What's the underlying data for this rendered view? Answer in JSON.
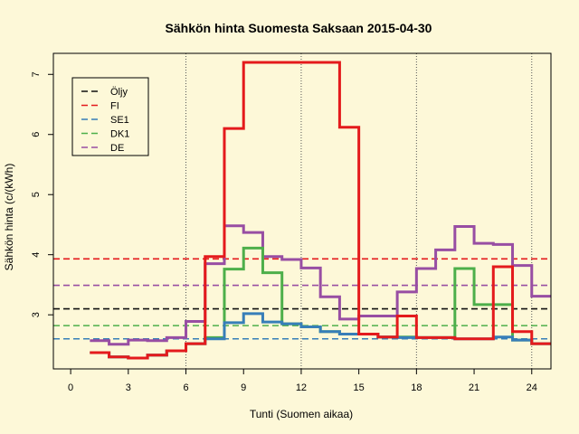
{
  "chart_data": {
    "type": "line",
    "title": "Sähkön hinta Suomesta Saksaan 2015-04-30",
    "xlabel": "Tunti (Suomen aikaa)",
    "ylabel": "Sähkön hinta (c/(kWh)",
    "xlim": [
      -0.9,
      25
    ],
    "ylim": [
      2.1,
      7.35
    ],
    "xticks": [
      0,
      3,
      6,
      9,
      12,
      15,
      18,
      21,
      24
    ],
    "yticks": [
      3,
      4,
      5,
      6,
      7
    ],
    "vlines": [
      6,
      12,
      18,
      24
    ],
    "step": true,
    "legend_position": "top-left",
    "series": [
      {
        "name": "Öljy",
        "color": "#111111",
        "dash": true,
        "values": [
          3.1
        ]
      },
      {
        "name": "FI",
        "color": "#e41a1c",
        "dash": false,
        "hline": 3.93,
        "x": [
          1,
          2,
          3,
          4,
          5,
          6,
          7,
          8,
          9,
          10,
          11,
          12,
          13,
          14,
          15,
          16,
          17,
          18,
          19,
          20,
          21,
          22,
          23,
          24,
          25
        ],
        "values": [
          2.37,
          2.3,
          2.28,
          2.33,
          2.4,
          2.52,
          3.97,
          6.1,
          7.2,
          7.2,
          7.2,
          7.2,
          7.2,
          6.12,
          2.68,
          2.63,
          2.98,
          2.62,
          2.62,
          2.6,
          2.6,
          3.8,
          2.72,
          2.52,
          2.52
        ]
      },
      {
        "name": "SE1",
        "color": "#377eb8",
        "dash": false,
        "hline": 2.6,
        "x": [
          1,
          2,
          3,
          4,
          5,
          6,
          7,
          8,
          9,
          10,
          11,
          12,
          13,
          14,
          15,
          16,
          17,
          18,
          19,
          20,
          21,
          22,
          23,
          24,
          25
        ],
        "values": [
          2.37,
          2.3,
          2.28,
          2.33,
          2.4,
          2.52,
          2.6,
          2.87,
          3.02,
          2.88,
          2.85,
          2.8,
          2.72,
          2.68,
          2.68,
          2.63,
          2.62,
          2.62,
          2.62,
          2.6,
          2.6,
          2.63,
          2.58,
          2.52,
          2.52
        ]
      },
      {
        "name": "DK1",
        "color": "#4daf4a",
        "dash": false,
        "hline": 2.82,
        "x": [
          1,
          2,
          3,
          4,
          5,
          6,
          7,
          8,
          9,
          10,
          11,
          12,
          13,
          14,
          15,
          16,
          17,
          18,
          19,
          20,
          21,
          22,
          23,
          24,
          25
        ],
        "values": [
          2.37,
          2.3,
          2.28,
          2.33,
          2.4,
          2.52,
          2.62,
          3.76,
          4.11,
          3.7,
          2.85,
          2.8,
          2.72,
          2.68,
          2.68,
          2.63,
          2.63,
          2.62,
          2.62,
          3.77,
          3.17,
          3.17,
          2.58,
          2.52,
          2.52
        ]
      },
      {
        "name": "DE",
        "color": "#984ea3",
        "dash": false,
        "hline": 3.49,
        "x": [
          1,
          2,
          3,
          4,
          5,
          6,
          7,
          8,
          9,
          10,
          11,
          12,
          13,
          14,
          15,
          16,
          17,
          18,
          19,
          20,
          21,
          22,
          23,
          24,
          25
        ],
        "values": [
          2.57,
          2.51,
          2.58,
          2.57,
          2.62,
          2.89,
          3.85,
          4.48,
          4.37,
          3.97,
          3.92,
          3.78,
          3.3,
          2.93,
          2.98,
          2.98,
          3.38,
          3.77,
          4.08,
          4.47,
          4.19,
          4.17,
          3.82,
          3.31,
          3.31
        ]
      }
    ]
  }
}
